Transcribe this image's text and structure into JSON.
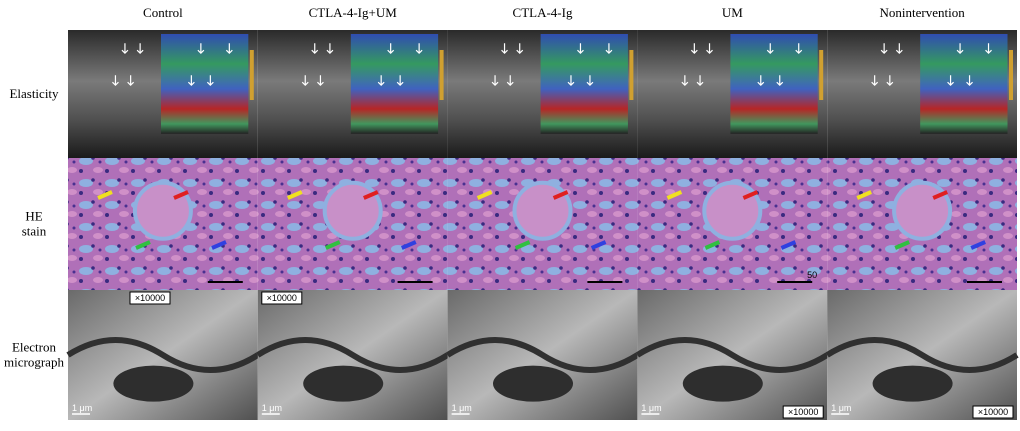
{
  "columns": [
    {
      "title": "Control",
      "em_magnification": "×10000",
      "em_magnification_corner": "top-left",
      "em_scale": "1 μm"
    },
    {
      "title": "CTLA-4-Ig+UM",
      "em_magnification": "×10000",
      "em_magnification_corner": "top-left",
      "em_scale": "1 μm"
    },
    {
      "title": "CTLA-4-Ig",
      "em_scale": "1 μm"
    },
    {
      "title": "UM",
      "em_magnification": "×10000",
      "em_magnification_corner": "bottom-right",
      "em_scale": "1 μm"
    },
    {
      "title": "Nonintervention",
      "em_magnification": "×10000",
      "em_magnification_corner": "bottom-right",
      "em_scale": "1 μm"
    }
  ],
  "rows": [
    {
      "label": [
        "Elasticity"
      ],
      "kind": "elasticity"
    },
    {
      "label": [
        "HE",
        "stain"
      ],
      "kind": "he"
    },
    {
      "label": [
        "Electron",
        "micrograph"
      ],
      "kind": "em"
    }
  ],
  "he_scale_text": "50"
}
